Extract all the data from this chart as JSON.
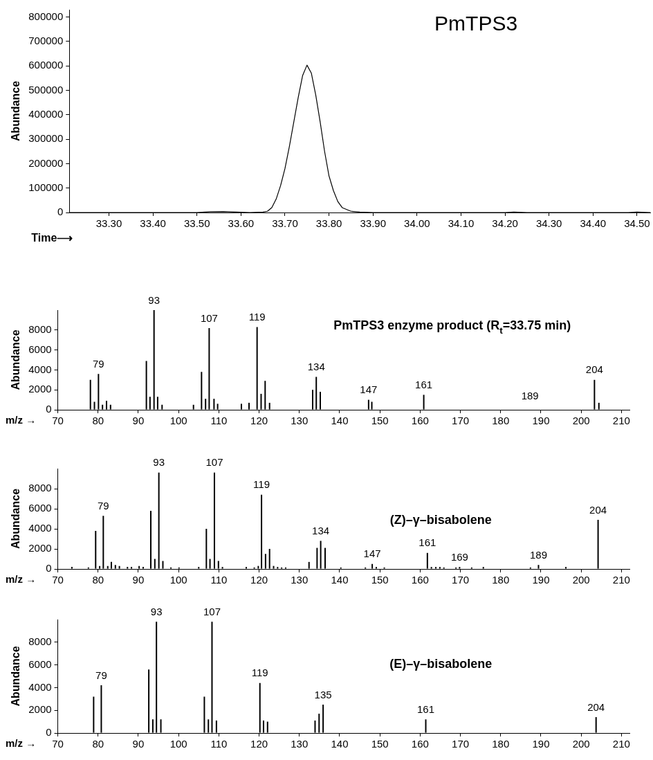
{
  "chart_data": [
    {
      "type": "line",
      "title": "PmTPS3",
      "xlabel": "Time⟶",
      "ylabel": "Abundance",
      "color": "#000000",
      "marker": "none",
      "line_style": "solid",
      "grid": false,
      "legend": false,
      "x": [
        33.21,
        33.5,
        33.53,
        33.56,
        33.59,
        33.62,
        33.65,
        33.66,
        33.67,
        33.68,
        33.69,
        33.7,
        33.71,
        33.72,
        33.73,
        33.74,
        33.75,
        33.76,
        33.77,
        33.78,
        33.79,
        33.8,
        33.81,
        33.82,
        33.83,
        33.85,
        33.87,
        33.9,
        34.2,
        34.22,
        34.25,
        34.48,
        34.5,
        34.53
      ],
      "values": [
        0,
        0,
        3000,
        4000,
        2000,
        0,
        2000,
        5000,
        20000,
        55000,
        110000,
        180000,
        270000,
        370000,
        470000,
        560000,
        603000,
        570000,
        480000,
        370000,
        250000,
        150000,
        90000,
        45000,
        20000,
        5000,
        2000,
        0,
        0,
        2000,
        0,
        0,
        2000,
        0
      ],
      "xlim": [
        33.21,
        34.53
      ],
      "xticks": [
        {
          "value": 33.3,
          "label": "33.30"
        },
        {
          "value": 33.4,
          "label": "33.40"
        },
        {
          "value": 33.5,
          "label": "33.50"
        },
        {
          "value": 33.6,
          "label": "33.60"
        },
        {
          "value": 33.7,
          "label": "33.70"
        },
        {
          "value": 33.8,
          "label": "33.80"
        },
        {
          "value": 33.9,
          "label": "33.90"
        },
        {
          "value": 34.0,
          "label": "34.00"
        },
        {
          "value": 34.1,
          "label": "34.10"
        },
        {
          "value": 34.2,
          "label": "34.20"
        },
        {
          "value": 34.3,
          "label": "34.30"
        },
        {
          "value": 34.4,
          "label": "34.40"
        },
        {
          "value": 34.5,
          "label": "34.50"
        }
      ],
      "ylim": [
        0,
        830000
      ],
      "yticks": [
        0,
        100000,
        200000,
        300000,
        400000,
        500000,
        600000,
        700000,
        800000
      ]
    },
    {
      "type": "bar",
      "title": "PmTPS3 enzyme product (R$_{t}$=33.75 min)",
      "xlabel": "m/z →",
      "ylabel": "Abundance",
      "color": "#000000",
      "grid": false,
      "legend": false,
      "x": [
        78.1,
        79.1,
        80.1,
        81.1,
        82.1,
        83.1,
        92.0,
        92.9,
        93.9,
        94.8,
        95.9,
        103.7,
        105.7,
        106.7,
        107.6,
        108.8,
        109.7,
        115.6,
        117.5,
        119.5,
        120.5,
        121.5,
        122.6,
        133.3,
        134.2,
        135.2,
        147.2,
        148.0,
        160.9,
        203.3,
        204.4
      ],
      "values": [
        3000,
        800,
        3600,
        500,
        900,
        500,
        4900,
        1300,
        10000,
        1300,
        500,
        500,
        3800,
        1100,
        8200,
        1100,
        600,
        600,
        700,
        8300,
        1600,
        2900,
        700,
        2000,
        3300,
        1800,
        1000,
        800,
        1500,
        3000,
        700
      ],
      "annotations": [
        {
          "text": "79",
          "x": 80.1,
          "y": 3600
        },
        {
          "text": "93",
          "x": 93.9,
          "y": 10000
        },
        {
          "text": "107",
          "x": 107.6,
          "y": 8200
        },
        {
          "text": "119",
          "x": 119.5,
          "y": 8300
        },
        {
          "text": "134",
          "x": 134.2,
          "y": 3300
        },
        {
          "text": "147",
          "x": 147.2,
          "y": 1000
        },
        {
          "text": "161",
          "x": 160.9,
          "y": 1500
        },
        "189",
        {
          "text": "204",
          "x": 203.3,
          "y": 3000
        }
      ],
      "xlim": [
        70,
        212
      ],
      "xticks": [
        70,
        80,
        90,
        100,
        110,
        120,
        130,
        140,
        150,
        160,
        170,
        180,
        190,
        200,
        210
      ],
      "ylim": [
        0,
        10000
      ],
      "yticks": [
        0,
        2000,
        4000,
        6000,
        8000
      ]
    },
    {
      "type": "bar",
      "title": "(Z)–γ–bisabolene",
      "xlabel": "m/z →",
      "ylabel": "Abundance",
      "color": "#000000",
      "grid": false,
      "legend": false,
      "x": [
        73.5,
        77.6,
        79.4,
        80.4,
        81.3,
        82.4,
        83.3,
        84.3,
        85.3,
        87.3,
        88.3,
        90.2,
        91.2,
        93.1,
        94.1,
        95.1,
        96.1,
        98.1,
        100.1,
        105.0,
        106.9,
        107.8,
        108.9,
        109.9,
        110.9,
        116.8,
        118.8,
        119.8,
        120.6,
        121.6,
        122.6,
        123.6,
        124.6,
        125.6,
        126.6,
        132.4,
        134.4,
        135.3,
        136.4,
        140.3,
        146.4,
        148.1,
        149.1,
        151.1,
        161.8,
        162.8,
        163.9,
        164.9,
        165.9,
        168.9,
        169.8,
        172.8,
        175.7,
        187.4,
        189.4,
        196.2,
        204.2
      ],
      "values": [
        200,
        150,
        3800,
        300,
        5300,
        300,
        700,
        400,
        300,
        200,
        200,
        300,
        200,
        5800,
        1000,
        9600,
        800,
        150,
        150,
        200,
        4000,
        1000,
        9600,
        800,
        200,
        200,
        150,
        300,
        7400,
        1500,
        2000,
        300,
        200,
        150,
        150,
        700,
        2100,
        2800,
        2100,
        150,
        150,
        500,
        200,
        150,
        1600,
        200,
        200,
        200,
        150,
        150,
        200,
        150,
        200,
        150,
        400,
        200,
        4900
      ],
      "annotations": [
        {
          "text": "79",
          "x": 81.3,
          "y": 5300
        },
        {
          "text": "93",
          "x": 95.1,
          "y": 9600
        },
        {
          "text": "107",
          "x": 108.9,
          "y": 9600
        },
        {
          "text": "119",
          "x": 120.6,
          "y": 7400
        },
        {
          "text": "134",
          "x": 135.3,
          "y": 2800
        },
        {
          "text": "147",
          "x": 148.1,
          "y": 500
        },
        {
          "text": "161",
          "x": 161.8,
          "y": 1600
        },
        {
          "text": "169",
          "x": 169.8,
          "y": 200
        },
        {
          "text": "189",
          "x": 189.4,
          "y": 400
        },
        {
          "text": "204",
          "x": 204.2,
          "y": 4900
        }
      ],
      "xlim": [
        70,
        212
      ],
      "xticks": [
        70,
        80,
        90,
        100,
        110,
        120,
        130,
        140,
        150,
        160,
        170,
        180,
        190,
        200,
        210
      ],
      "ylim": [
        0,
        10000
      ],
      "yticks": [
        0,
        2000,
        4000,
        6000,
        8000
      ]
    },
    {
      "type": "bar",
      "title": "(E)–γ–bisabolene",
      "xlabel": "m/z →",
      "ylabel": "Abundance",
      "color": "#000000",
      "grid": false,
      "legend": false,
      "x": [
        78.9,
        80.8,
        92.6,
        93.6,
        94.5,
        95.6,
        106.4,
        107.4,
        108.3,
        109.4,
        120.2,
        121.1,
        122.1,
        133.9,
        134.9,
        135.9,
        161.4,
        203.7
      ],
      "values": [
        3200,
        4200,
        5600,
        1200,
        9800,
        1200,
        3200,
        1200,
        9800,
        1100,
        4400,
        1100,
        1000,
        1100,
        1700,
        2500,
        1200,
        1400
      ],
      "annotations": [
        {
          "text": "79",
          "x": 80.8,
          "y": 4200
        },
        {
          "text": "93",
          "x": 94.5,
          "y": 9800
        },
        {
          "text": "107",
          "x": 108.3,
          "y": 9800
        },
        {
          "text": "119",
          "x": 120.2,
          "y": 4400
        },
        {
          "text": "135",
          "x": 135.9,
          "y": 2500
        },
        {
          "text": "161",
          "x": 161.4,
          "y": 1200
        },
        {
          "text": "204",
          "x": 203.7,
          "y": 1400
        }
      ],
      "xlim": [
        70,
        212
      ],
      "xticks": [
        70,
        80,
        90,
        100,
        110,
        120,
        130,
        140,
        150,
        160,
        170,
        180,
        190,
        200,
        210
      ],
      "ylim": [
        0,
        10000
      ],
      "yticks": [
        0,
        2000,
        4000,
        6000,
        8000
      ]
    }
  ]
}
